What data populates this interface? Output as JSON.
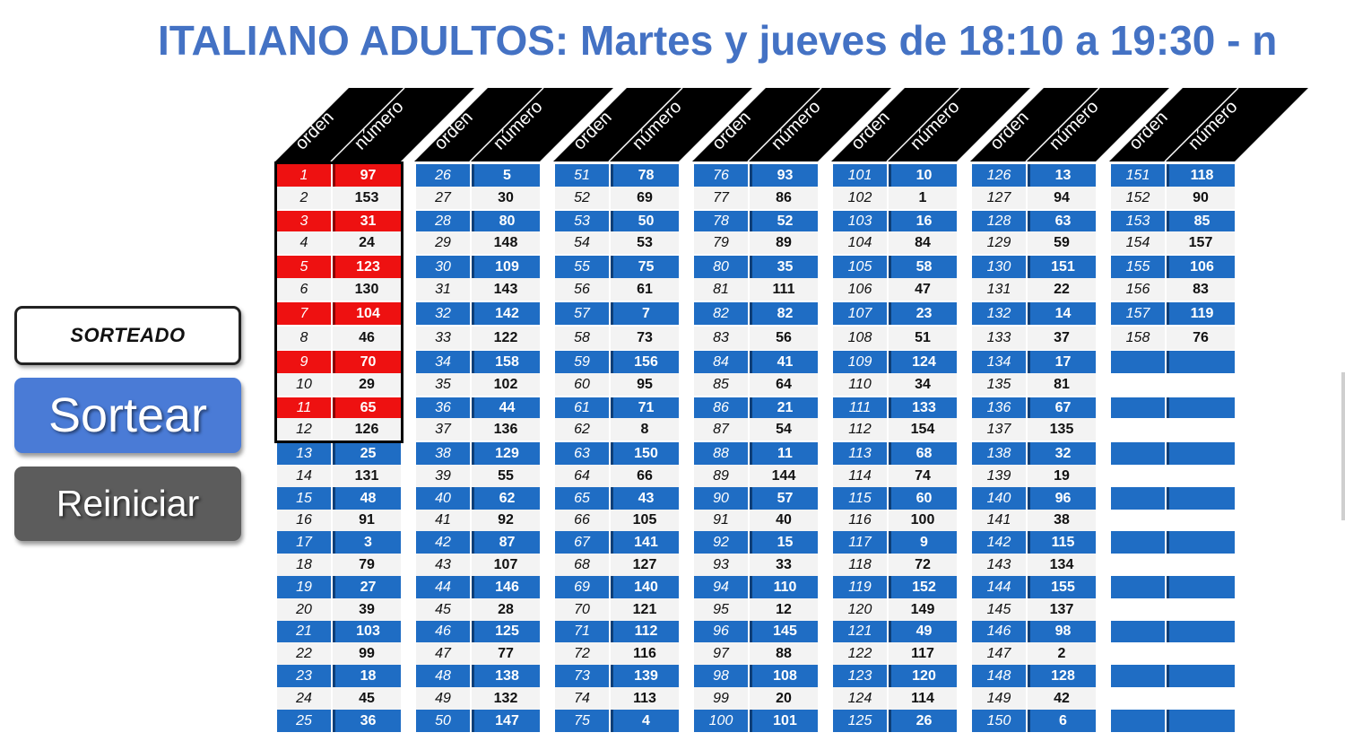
{
  "title": "ITALIANO ADULTOS: Martes y jueves de 18:10 a 19:30 - n",
  "buttons": {
    "sorteado": "SORTEADO",
    "sortear": "Sortear",
    "reiniciar": "Reiniciar"
  },
  "header_labels": {
    "orden": "orden",
    "numero": "número"
  },
  "colors": {
    "blue": "#1f6dc4",
    "red": "#ee1111",
    "white": "#f3f3f3",
    "title": "#4472c4"
  },
  "drawn_count": 12,
  "numbers": [
    97,
    153,
    31,
    24,
    123,
    130,
    104,
    46,
    70,
    29,
    65,
    126,
    25,
    131,
    48,
    91,
    3,
    79,
    27,
    39,
    103,
    99,
    18,
    45,
    36,
    5,
    30,
    80,
    148,
    109,
    143,
    142,
    122,
    158,
    102,
    44,
    136,
    129,
    55,
    62,
    92,
    87,
    107,
    146,
    28,
    125,
    77,
    138,
    132,
    147,
    78,
    69,
    50,
    53,
    75,
    61,
    7,
    73,
    156,
    95,
    71,
    8,
    150,
    66,
    43,
    105,
    141,
    127,
    140,
    121,
    112,
    116,
    139,
    113,
    4,
    93,
    86,
    52,
    89,
    35,
    111,
    82,
    56,
    41,
    64,
    21,
    54,
    11,
    144,
    57,
    40,
    15,
    33,
    110,
    12,
    145,
    88,
    108,
    20,
    101,
    10,
    1,
    16,
    84,
    58,
    47,
    23,
    51,
    124,
    34,
    133,
    154,
    68,
    74,
    60,
    100,
    9,
    72,
    152,
    149,
    49,
    117,
    120,
    114,
    26,
    13,
    94,
    63,
    59,
    151,
    22,
    14,
    37,
    17,
    81,
    67,
    135,
    32,
    19,
    96,
    38,
    115,
    134,
    155,
    137,
    98,
    2,
    128,
    42,
    6,
    118,
    90,
    85,
    157,
    106,
    83,
    119,
    76
  ]
}
